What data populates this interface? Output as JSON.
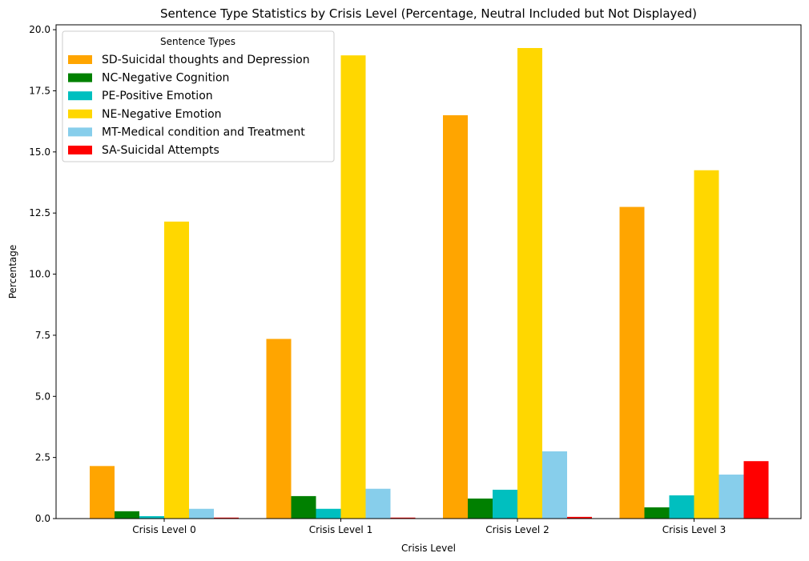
{
  "chart_data": {
    "type": "bar",
    "title": "Sentence Type Statistics by Crisis Level (Percentage, Neutral Included but Not Displayed)",
    "xlabel": "Crisis Level",
    "ylabel": "Percentage",
    "categories": [
      "Crisis Level 0",
      "Crisis Level 1",
      "Crisis Level 2",
      "Crisis Level 3"
    ],
    "ylim": [
      0,
      20.2
    ],
    "yticks": [
      "0.0",
      "2.5",
      "5.0",
      "7.5",
      "10.0",
      "12.5",
      "15.0",
      "17.5",
      "20.0"
    ],
    "legend_title": "Sentence Types",
    "legend_position": "upper-left",
    "grid": false,
    "series": [
      {
        "name": "SD-Suicidal thoughts and Depression",
        "color": "#FFA500",
        "values": [
          2.15,
          7.35,
          16.5,
          12.75
        ]
      },
      {
        "name": "NC-Negative Cognition",
        "color": "#008000",
        "values": [
          0.3,
          0.92,
          0.82,
          0.46
        ]
      },
      {
        "name": "PE-Positive Emotion",
        "color": "#00BFBF",
        "values": [
          0.1,
          0.4,
          1.18,
          0.95
        ]
      },
      {
        "name": "NE-Negative Emotion",
        "color": "#FFD700",
        "values": [
          12.15,
          18.95,
          19.25,
          14.25
        ]
      },
      {
        "name": "MT-Medical condition and Treatment",
        "color": "#87CEEB",
        "values": [
          0.4,
          1.22,
          2.75,
          1.8
        ]
      },
      {
        "name": "SA-Suicidal Attempts",
        "color": "#FF0000",
        "values": [
          0.04,
          0.04,
          0.07,
          2.35
        ]
      }
    ]
  }
}
